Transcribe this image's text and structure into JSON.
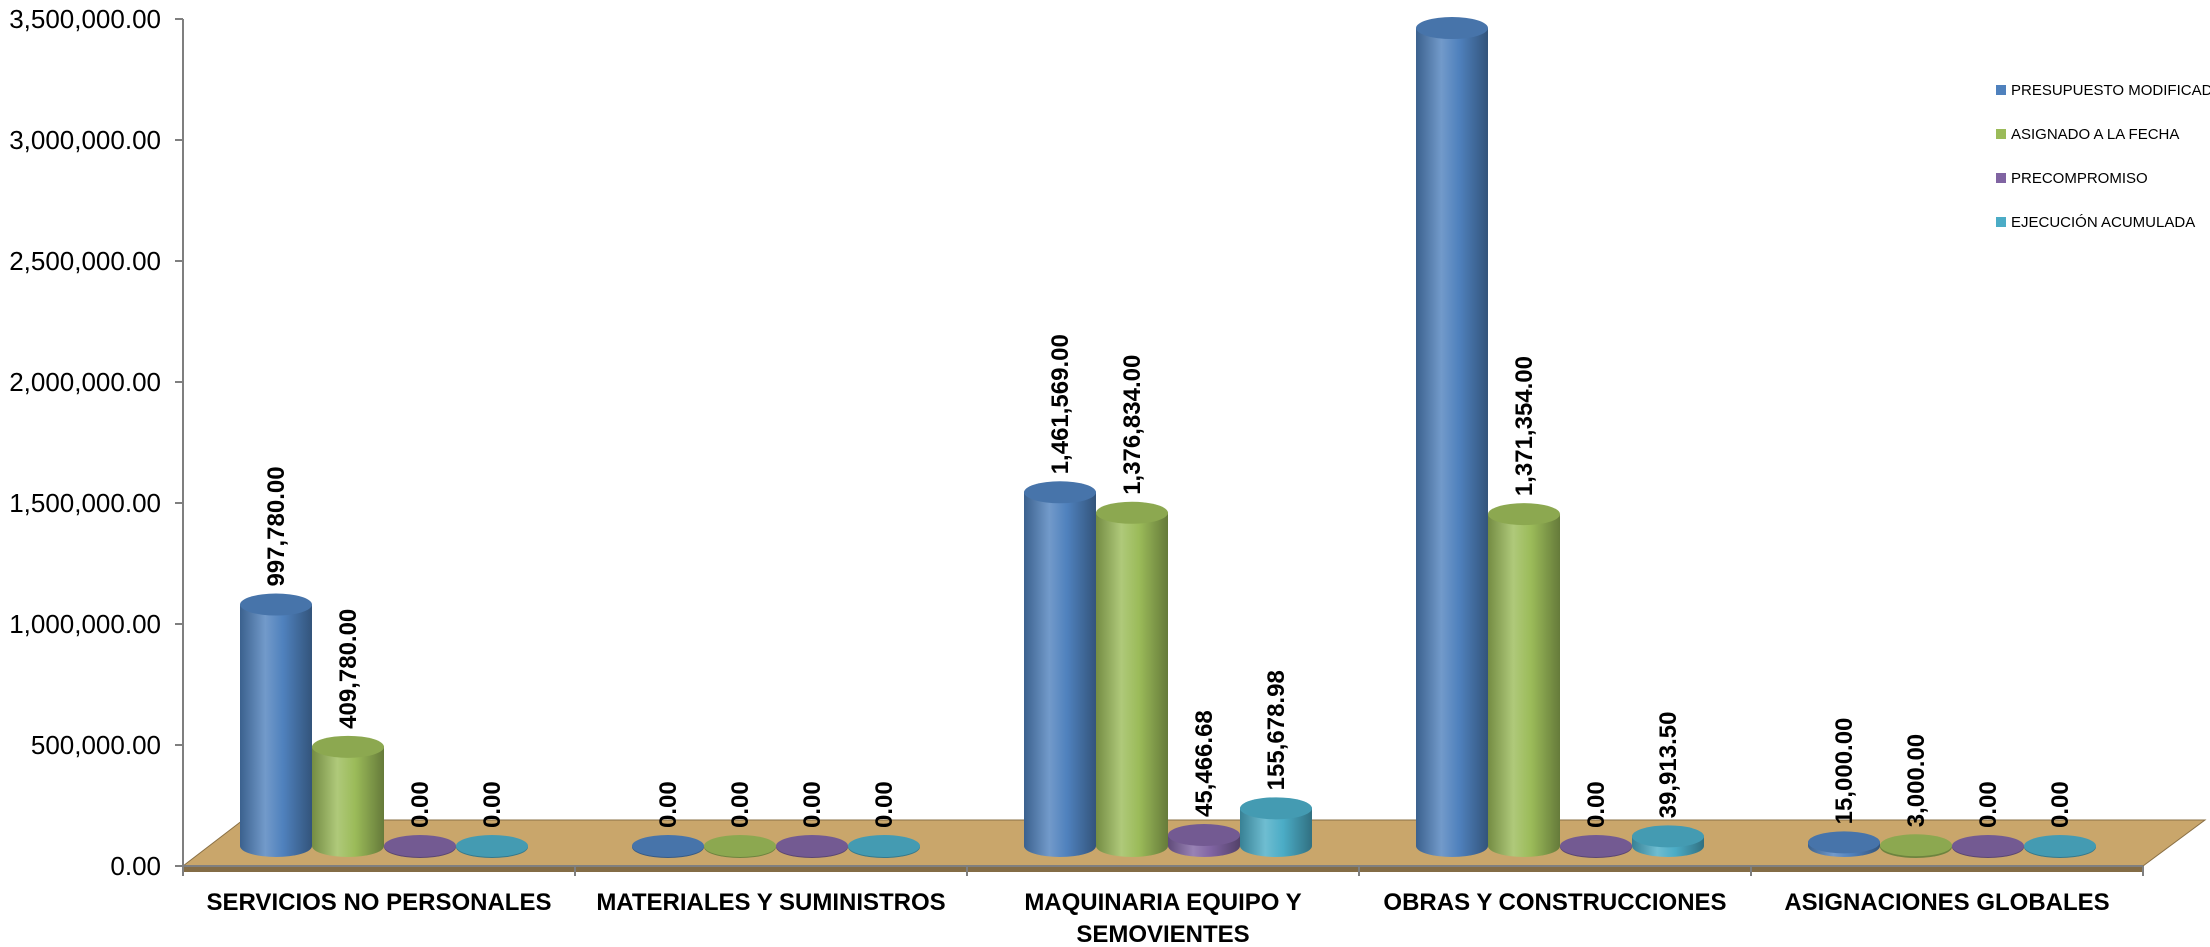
{
  "chart_data": {
    "type": "bar",
    "categories": [
      [
        "SERVICIOS NO PERSONALES"
      ],
      [
        "MATERIALES Y SUMINISTROS"
      ],
      [
        "MAQUINARIA EQUIPO Y",
        "SEMOVIENTES"
      ],
      [
        "OBRAS Y CONSTRUCCIONES"
      ],
      [
        "ASIGNACIONES GLOBALES"
      ]
    ],
    "series": [
      {
        "name": "PRESUPUESTO MODIFICADO",
        "color": "#4f81bd",
        "values": [
          997780.0,
          0.0,
          1461569.0,
          3380000.0,
          15000.0
        ],
        "labels": [
          "997,780.00",
          "0.00",
          "1,461,569.00",
          "",
          "15,000.00"
        ]
      },
      {
        "name": "ASIGNADO A LA FECHA",
        "color": "#9bbb59",
        "values": [
          409780.0,
          0.0,
          1376834.0,
          1371354.0,
          3000.0
        ],
        "labels": [
          "409,780.00",
          "0.00",
          "1,376,834.00",
          "1,371,354.00",
          "3,000.00"
        ]
      },
      {
        "name": "PRECOMPROMISO",
        "color": "#8064a2",
        "values": [
          0.0,
          0.0,
          45466.68,
          0.0,
          0.0
        ],
        "labels": [
          "0.00",
          "0.00",
          "45,466.68",
          "0.00",
          "0.00"
        ]
      },
      {
        "name": "EJECUCIÓN ACUMULADA",
        "color": "#4bacc6",
        "values": [
          0.0,
          0.0,
          155678.98,
          39913.5,
          0.0
        ],
        "labels": [
          "0.00",
          "0.00",
          "155,678.98",
          "39,913.50",
          "0.00"
        ]
      }
    ],
    "yticks": [
      "0.00",
      "500,000.00",
      "1,000,000.00",
      "1,500,000.00",
      "2,000,000.00",
      "2,500,000.00",
      "3,000,000.00",
      "3,500,000.00"
    ],
    "ylim": [
      0,
      3500000
    ],
    "legend_position": "right",
    "floor_color": "#c9a66b",
    "title": "",
    "xlabel": "",
    "ylabel": ""
  }
}
